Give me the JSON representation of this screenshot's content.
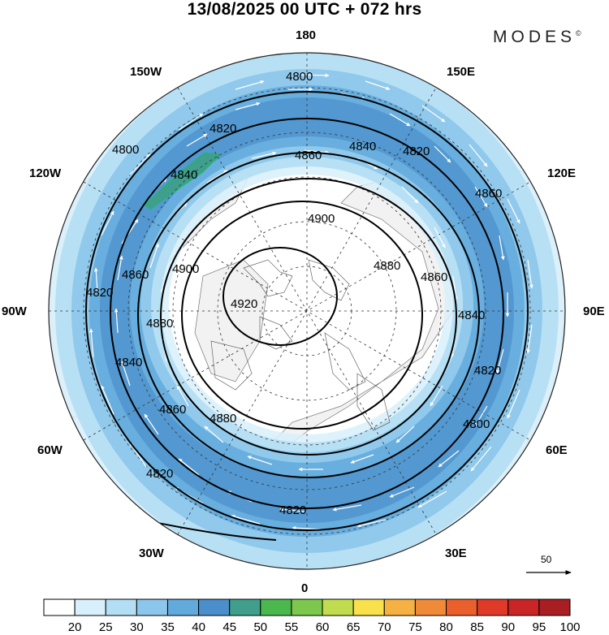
{
  "title": "13/08/2025  00 UTC  + 072 hrs",
  "brand": {
    "name": "MODES",
    "mark": "©"
  },
  "longitude_labels": {
    "top": "180",
    "bottom": "0",
    "left": "90W",
    "right": "90E",
    "upper_left_1": "150W",
    "upper_left_2": "120W",
    "upper_right_1": "150E",
    "upper_right_2": "120E",
    "lower_left_1": "60W",
    "lower_left_2": "30W",
    "lower_right_1": "60E",
    "lower_right_2": "30E"
  },
  "contour_labels": [
    "4800",
    "4820",
    "4840",
    "4860",
    "4880",
    "4900",
    "4920"
  ],
  "reference_vector": {
    "value": "50"
  },
  "colorbar": {
    "labels": [
      "20",
      "25",
      "30",
      "35",
      "40",
      "45",
      "50",
      "55",
      "60",
      "65",
      "70",
      "75",
      "80",
      "85",
      "90",
      "95",
      "100"
    ],
    "colors": [
      "#ffffff",
      "#d8f0fb",
      "#b4def4",
      "#8cc6ea",
      "#62a9dc",
      "#4a8fcb",
      "#3f9f8c",
      "#4bb84e",
      "#7cc84c",
      "#c2dc50",
      "#f9e14c",
      "#f5b242",
      "#ef8a38",
      "#e9602c",
      "#df3a28",
      "#c92426",
      "#a81e22"
    ]
  },
  "colors": {
    "land": "#f2f2f2",
    "coast": "#6e6e6e",
    "contour": "#000000",
    "wind_arrow": "#ffffff"
  }
}
